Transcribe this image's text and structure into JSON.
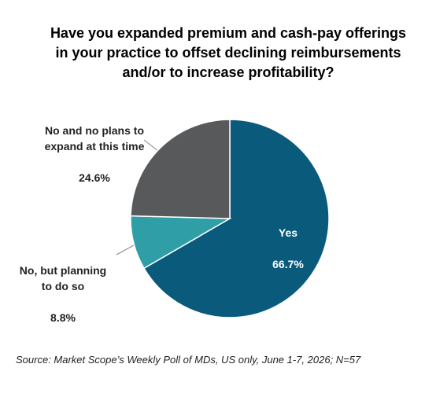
{
  "chart_data": {
    "type": "pie",
    "title": "Have you expanded premium and cash-pay offerings\nin your practice to offset declining reimbursements\nand/or to increase profitability?",
    "categories": [
      "Yes",
      "No, but planning\nto do so",
      "No and no plans to\nexpand at this time"
    ],
    "values": [
      66.7,
      8.8,
      24.6
    ],
    "value_labels": [
      "66.7%",
      "8.8%",
      "24.6%"
    ],
    "colors": [
      "#0a5a7c",
      "#2f9ea7",
      "#58595b"
    ],
    "source": "Source: Market Scope’s Weekly Poll of MDs, US only, June 1-7, 2026; N=57"
  }
}
